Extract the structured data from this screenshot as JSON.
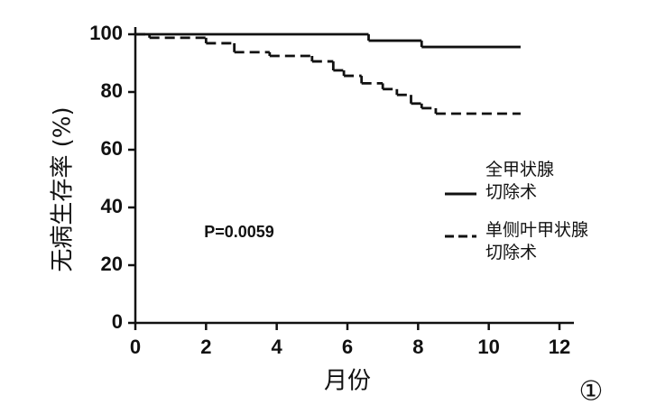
{
  "chart_data": {
    "type": "line",
    "step": true,
    "y_label": "无病生存率 (%)",
    "x_label": "月份",
    "annotations": [
      "P=0.0059",
      "①"
    ],
    "xlim": [
      0,
      12
    ],
    "xticks": [
      0,
      2,
      4,
      6,
      8,
      10,
      12
    ],
    "ylim": [
      0,
      100
    ],
    "yticks": [
      0,
      20,
      40,
      60,
      80,
      100
    ],
    "grid": false,
    "legend": "right",
    "series": [
      {
        "name": "全甲状腺切除术",
        "color": "#111111",
        "dash": "solid",
        "x": [
          0,
          6.6,
          8.1,
          10.9
        ],
        "values": [
          100,
          97.8,
          95.6,
          95.6
        ]
      },
      {
        "name": "单侧叶甲状腺切除术",
        "color": "#111111",
        "dash": "dashed",
        "x": [
          0,
          0.4,
          2,
          2.8,
          3.8,
          5,
          5.6,
          5.9,
          6.4,
          7,
          7.4,
          7.8,
          8.1,
          8.5,
          10.9
        ],
        "values": [
          100,
          98.8,
          96.9,
          93.8,
          92.5,
          90.6,
          87.5,
          85.6,
          83,
          81,
          79,
          76,
          74.4,
          72.5,
          72.5
        ]
      }
    ]
  }
}
